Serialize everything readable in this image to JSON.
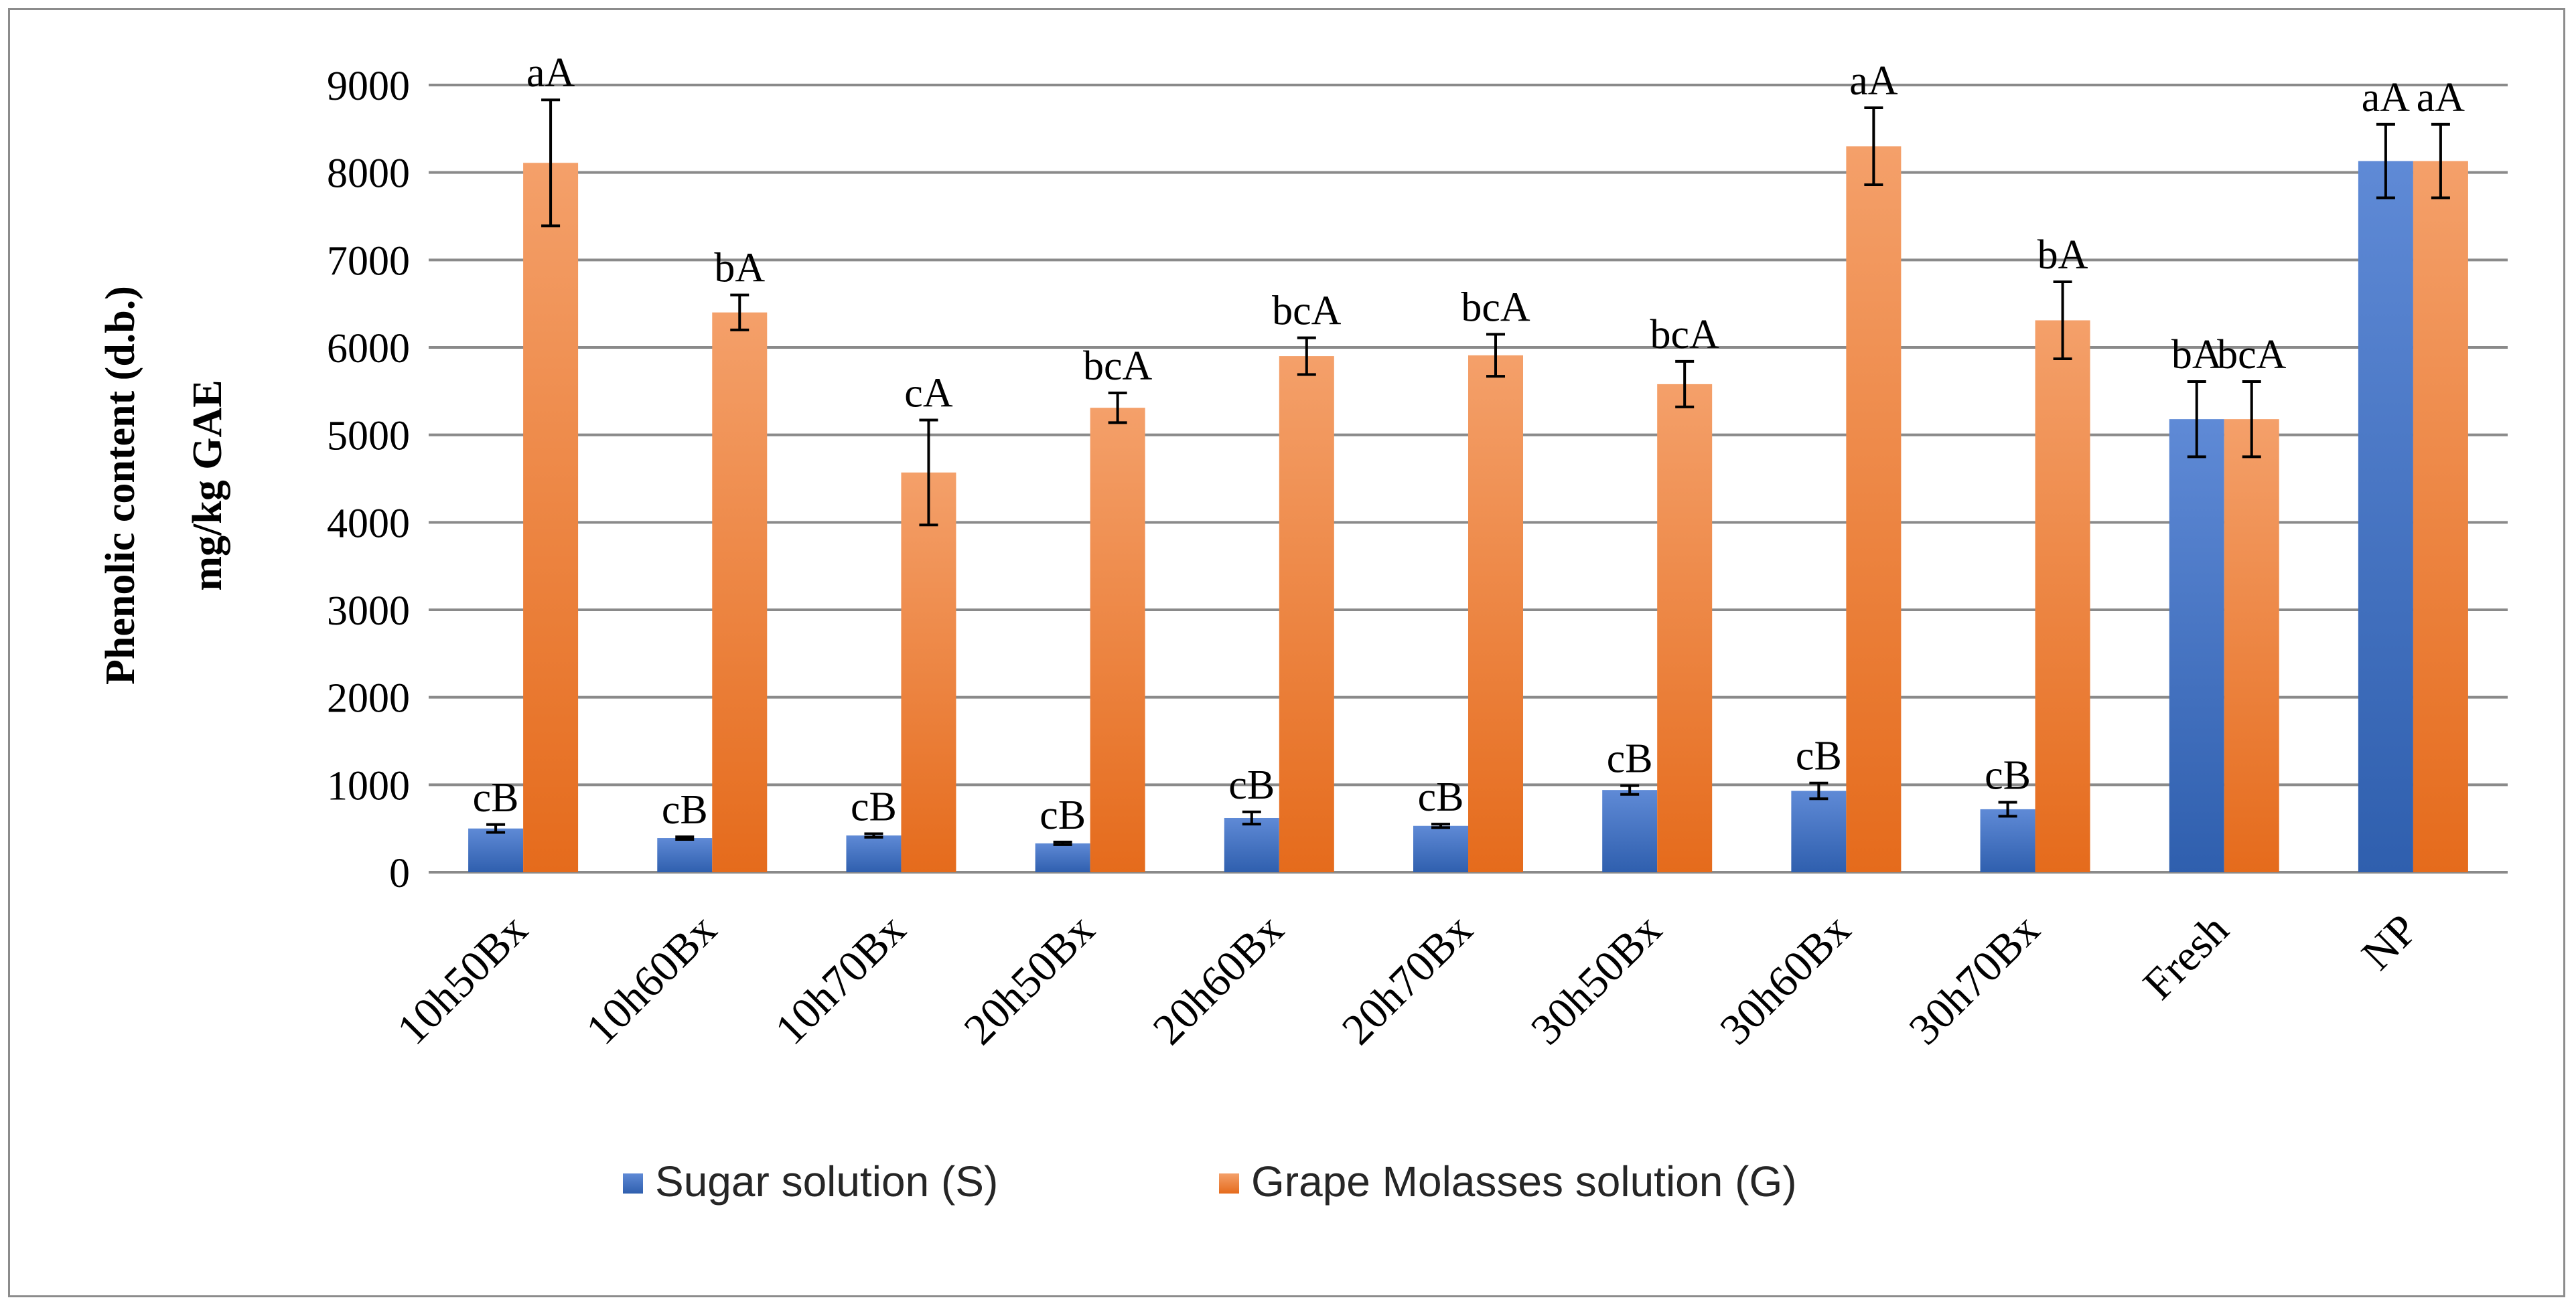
{
  "chart_data": {
    "type": "bar",
    "title": "",
    "ylabel_line1": "Phenolic content (d.b.)",
    "ylabel_line2": "mg/kg GAE",
    "xlabel": "",
    "ylim": [
      0,
      9000
    ],
    "y_ticks": [
      0,
      1000,
      2000,
      3000,
      4000,
      5000,
      6000,
      7000,
      8000,
      9000
    ],
    "grid": true,
    "legend_position": "bottom",
    "categories": [
      "10h50Bx",
      "10h60Bx",
      "10h70Bx",
      "20h50Bx",
      "20h60Bx",
      "20h70Bx",
      "30h50Bx",
      "30h60Bx",
      "30h70Bx",
      "Fresh",
      "NP"
    ],
    "series": [
      {
        "name": "Sugar solution (S)",
        "color": "#4472c4",
        "values": [
          500,
          390,
          420,
          330,
          620,
          530,
          940,
          930,
          720,
          5180,
          8130
        ],
        "errors": [
          45,
          15,
          20,
          15,
          70,
          20,
          50,
          90,
          80,
          430,
          420
        ],
        "labels": [
          "cB",
          "cB",
          "cB",
          "cB",
          "cB",
          "cB",
          "cB",
          "cB",
          "cB",
          "bA",
          "aA"
        ]
      },
      {
        "name": "Grape Molasses solution (G)",
        "color": "#ed7d31",
        "values": [
          8110,
          6400,
          4570,
          5310,
          5900,
          5910,
          5580,
          8300,
          6310,
          5180,
          8130
        ],
        "errors": [
          720,
          200,
          600,
          170,
          210,
          240,
          260,
          440,
          440,
          430,
          420
        ],
        "labels": [
          "aA",
          "bA",
          "cA",
          "bcA",
          "bcA",
          "bcA",
          "bcA",
          "aA",
          "bA",
          "bcA",
          "aA"
        ]
      }
    ]
  }
}
